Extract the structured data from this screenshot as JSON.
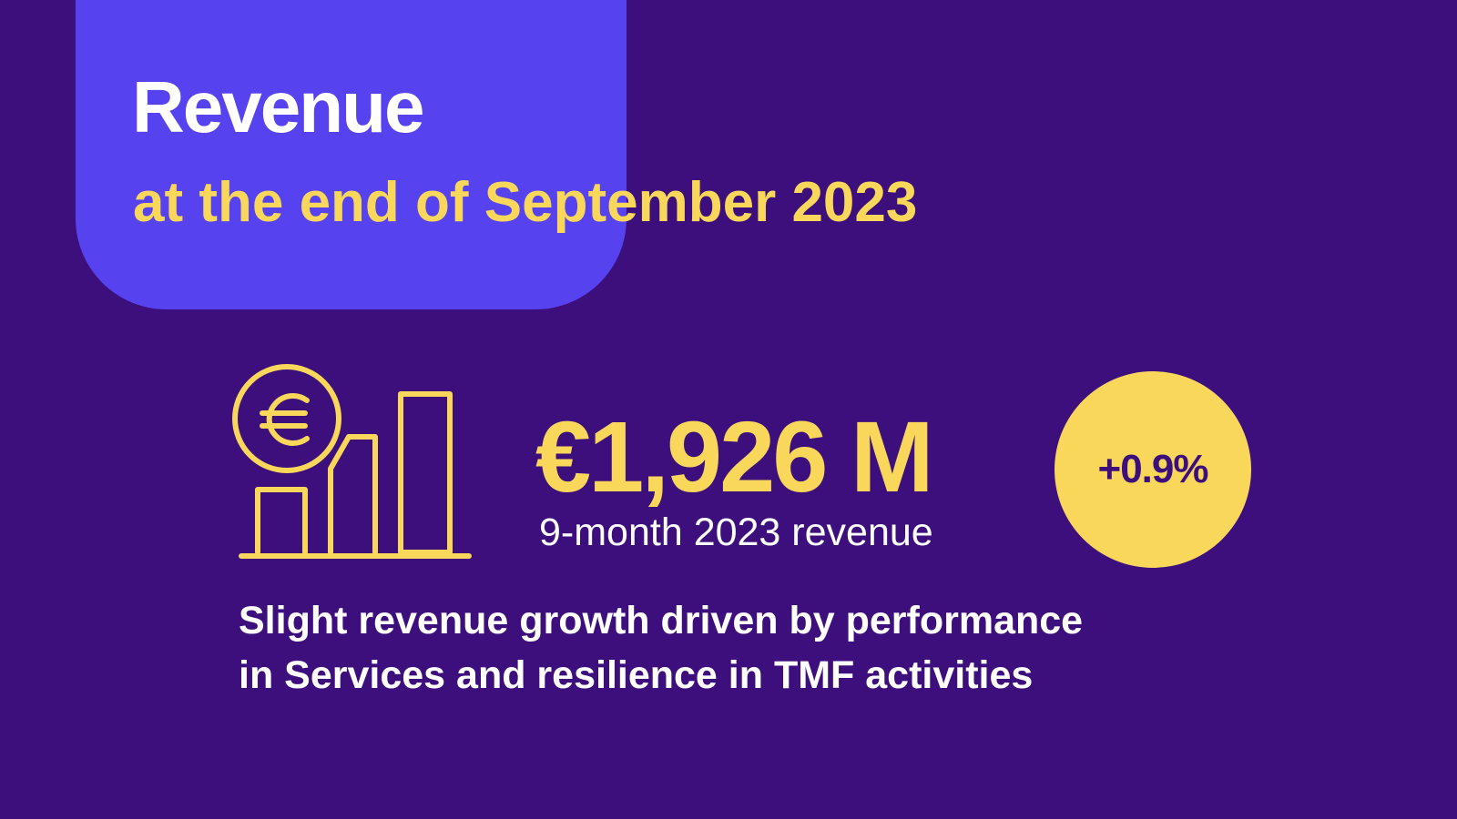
{
  "header": {
    "title": "Revenue",
    "subtitle": "at the end of September 2023"
  },
  "kpi": {
    "value": "€1,926 M",
    "label": "9-month 2023 revenue",
    "growth": "+0.9%",
    "icon": "euro-bar-chart-icon"
  },
  "description": {
    "line1": "Slight revenue growth driven by performance",
    "line2": "in Services and resilience in TMF activities"
  },
  "colors": {
    "background": "#3d0f7d",
    "panel": "#5642ee",
    "accent": "#f8d75a",
    "text": "#ffffff"
  }
}
